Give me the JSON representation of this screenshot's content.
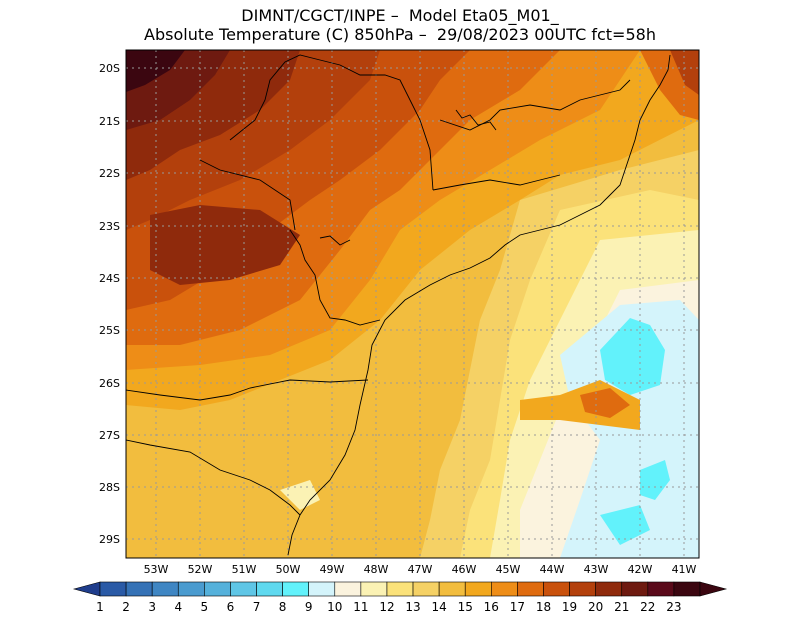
{
  "title": {
    "line1": "DIMNT/CGCT/INPE –  Model Eta05_M01_",
    "line2": "Absolute Temperature (C) 850hPa –  29/08/2023 00UTC fct=58h"
  },
  "axes": {
    "lat_labels": [
      "20S",
      "21S",
      "22S",
      "23S",
      "24S",
      "25S",
      "26S",
      "27S",
      "28S",
      "29S"
    ],
    "lon_labels": [
      "53W",
      "52W",
      "51W",
      "50W",
      "49W",
      "48W",
      "47W",
      "46W",
      "45W",
      "44W",
      "43W",
      "42W",
      "41W"
    ]
  },
  "colorbar": {
    "labels": [
      "1",
      "2",
      "3",
      "4",
      "5",
      "6",
      "7",
      "8",
      "9",
      "10",
      "11",
      "12",
      "13",
      "14",
      "15",
      "16",
      "17",
      "18",
      "19",
      "20",
      "21",
      "22",
      "23"
    ],
    "colors": [
      "#1f3d8c",
      "#2a5aa6",
      "#3572b6",
      "#3f86c3",
      "#4a9bcf",
      "#55b1db",
      "#5fc6e6",
      "#5fd9ef",
      "#62f2fb",
      "#d4f4fb",
      "#fbf3de",
      "#fbf2b4",
      "#fbe27a",
      "#f5d165",
      "#f2bd3e",
      "#f2a81e",
      "#ee8d17",
      "#df6b0f",
      "#c9510c",
      "#b3400c",
      "#8f2a0c",
      "#6e1a10",
      "#5a0a1a",
      "#3b0610"
    ]
  },
  "chart_data": {
    "type": "heatmap",
    "variable": "Absolute Temperature (C) 850hPa",
    "units": "C",
    "model": "Eta05_M01_",
    "run": "29/08/2023 00UTC",
    "forecast_hour": "58h",
    "lat_range": [
      "29.5S",
      "19.8S"
    ],
    "lon_range": [
      "53.8W",
      "40.7W"
    ],
    "levels": [
      1,
      2,
      3,
      4,
      5,
      6,
      7,
      8,
      9,
      10,
      11,
      12,
      13,
      14,
      15,
      16,
      17,
      18,
      19,
      20,
      21,
      22,
      23
    ],
    "regions": [
      {
        "area": "northwest interior (20S-21S, 53W-51W)",
        "value": 22
      },
      {
        "area": "west interior (21S-24S, 53W-49W)",
        "value": 19
      },
      {
        "area": "north central (20S-22S, 49W-46W)",
        "value": 18
      },
      {
        "area": "coastal south (25S-29S, 49W-47W)",
        "value": 14
      },
      {
        "area": "offshore southeast (24S-29S, 45W-41W)",
        "value": 11
      },
      {
        "area": "offshore cold pool (25S-27S, 43W-42W)",
        "value": 9
      },
      {
        "area": "east of 41W near 20S",
        "value": 20
      }
    ]
  }
}
